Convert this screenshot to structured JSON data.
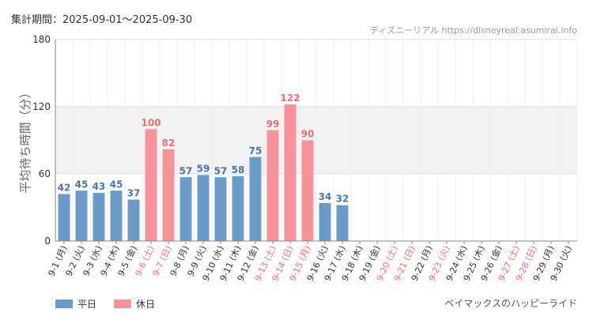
{
  "period_label": "集計期間：2025-09-01～2025-09-30",
  "credit": "ディズニーリアル https://disneyreal.asumirai.info",
  "attraction": "ベイマックスのハッピーライド",
  "chart_data": {
    "type": "bar",
    "title": "",
    "xlabel": "",
    "ylabel": "平均待ち時間（分）",
    "ylim": [
      0,
      180
    ],
    "yticks": [
      0,
      60,
      120,
      180
    ],
    "shaded_band": [
      60,
      120
    ],
    "categories": [
      "9-1 (月)",
      "9-2 (火)",
      "9-3 (水)",
      "9-4 (木)",
      "9-5 (金)",
      "9-6 (土)",
      "9-7 (日)",
      "9-8 (月)",
      "9-9 (火)",
      "9-10 (水)",
      "9-11 (木)",
      "9-12 (金)",
      "9-13 (土)",
      "9-14 (日)",
      "9-15 (月)",
      "9-16 (火)",
      "9-17 (水)",
      "9-18 (木)",
      "9-19 (金)",
      "9-20 (土)",
      "9-21 (日)",
      "9-22 (月)",
      "9-23 (火)",
      "9-24 (水)",
      "9-25 (木)",
      "9-26 (金)",
      "9-27 (土)",
      "9-28 (日)",
      "9-29 (月)",
      "9-30 (火)"
    ],
    "values": [
      42,
      45,
      43,
      45,
      37,
      100,
      82,
      57,
      59,
      57,
      58,
      75,
      99,
      122,
      90,
      34,
      32,
      null,
      null,
      null,
      null,
      null,
      null,
      null,
      null,
      null,
      null,
      null,
      null,
      null
    ],
    "day_type": [
      "weekday",
      "weekday",
      "weekday",
      "weekday",
      "weekday",
      "holiday",
      "holiday",
      "weekday",
      "weekday",
      "weekday",
      "weekday",
      "weekday",
      "holiday",
      "holiday",
      "holiday",
      "weekday",
      "weekday",
      "weekday",
      "weekday",
      "holiday",
      "holiday",
      "weekday",
      "holiday",
      "weekday",
      "weekday",
      "weekday",
      "holiday",
      "holiday",
      "weekday",
      "weekday"
    ],
    "legend": [
      {
        "name": "平日",
        "key": "weekday",
        "color": "#6b9bc9"
      },
      {
        "name": "休日",
        "key": "holiday",
        "color": "#f7929a"
      }
    ],
    "colors": {
      "weekday_bar": "#6b9bc9",
      "holiday_bar": "#f7929a",
      "weekday_label": "#4a76a8",
      "holiday_label": "#f06a74",
      "band": "#f2f2f2",
      "grid": "#dddddd"
    }
  }
}
